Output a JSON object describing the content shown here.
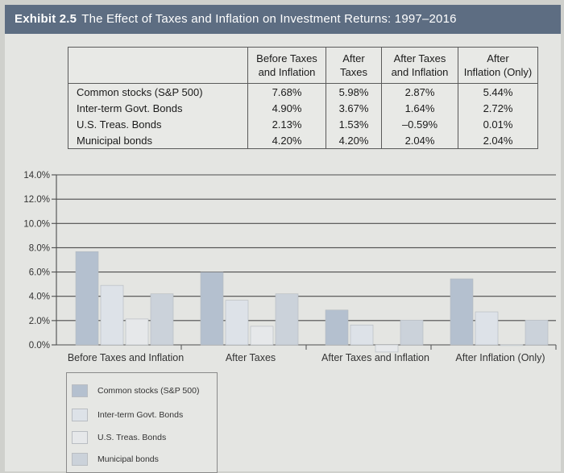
{
  "header": {
    "exhibit": "Exhibit 2.5",
    "title": "The Effect of Taxes and Inflation on Investment Returns: 1997–2016"
  },
  "table": {
    "headers": [
      {
        "line1": "Before Taxes",
        "line2": "and Inflation"
      },
      {
        "line1": "After",
        "line2": "Taxes"
      },
      {
        "line1": "After Taxes",
        "line2": "and Inflation"
      },
      {
        "line1": "After",
        "line2": "Inflation (Only)"
      }
    ],
    "rows": [
      {
        "label": "Common stocks (S&P 500)",
        "values": [
          "7.68%",
          "5.98%",
          "2.87%",
          "5.44%"
        ]
      },
      {
        "label": "Inter-term Govt. Bonds",
        "values": [
          "4.90%",
          "3.67%",
          "1.64%",
          "2.72%"
        ]
      },
      {
        "label": "U.S. Treas. Bonds",
        "values": [
          "2.13%",
          "1.53%",
          "–0.59%",
          "0.01%"
        ]
      },
      {
        "label": "Municipal bonds",
        "values": [
          "4.20%",
          "4.20%",
          "2.04%",
          "2.04%"
        ]
      }
    ]
  },
  "chart_data": {
    "type": "bar",
    "categories": [
      "Before Taxes and Inflation",
      "After Taxes",
      "After Taxes and Inflation",
      "After Inflation (Only)"
    ],
    "series": [
      {
        "name": "Common stocks (S&P 500)",
        "values": [
          7.68,
          5.98,
          2.87,
          5.44
        ],
        "color": "#b4c0cf"
      },
      {
        "name": "Inter-term Govt. Bonds",
        "values": [
          4.9,
          3.67,
          1.64,
          2.72
        ],
        "color": "#dde2e8"
      },
      {
        "name": "U.S. Treas. Bonds",
        "values": [
          2.13,
          1.53,
          -0.59,
          0.01
        ],
        "color": "#e6e8ea"
      },
      {
        "name": "Municipal bonds",
        "values": [
          4.2,
          4.2,
          2.04,
          2.04
        ],
        "color": "#cbd2da"
      }
    ],
    "yticks": [
      "14.0%",
      "12.0%",
      "10.0%",
      "8.0%",
      "6.0%",
      "4.0%",
      "2.0%",
      "0.0%"
    ],
    "ylim": [
      0,
      14
    ],
    "ytick_values": [
      14,
      12,
      10,
      8,
      6,
      4,
      2,
      0
    ],
    "grid": true,
    "legend_position": "bottom-left"
  },
  "colors": {
    "header_bg": "#5d6d82",
    "bar_stock": "#b4c0cf",
    "bar_govt": "#dde2e8",
    "bar_treas": "#e6e8ea",
    "bar_muni": "#cbd2da"
  }
}
